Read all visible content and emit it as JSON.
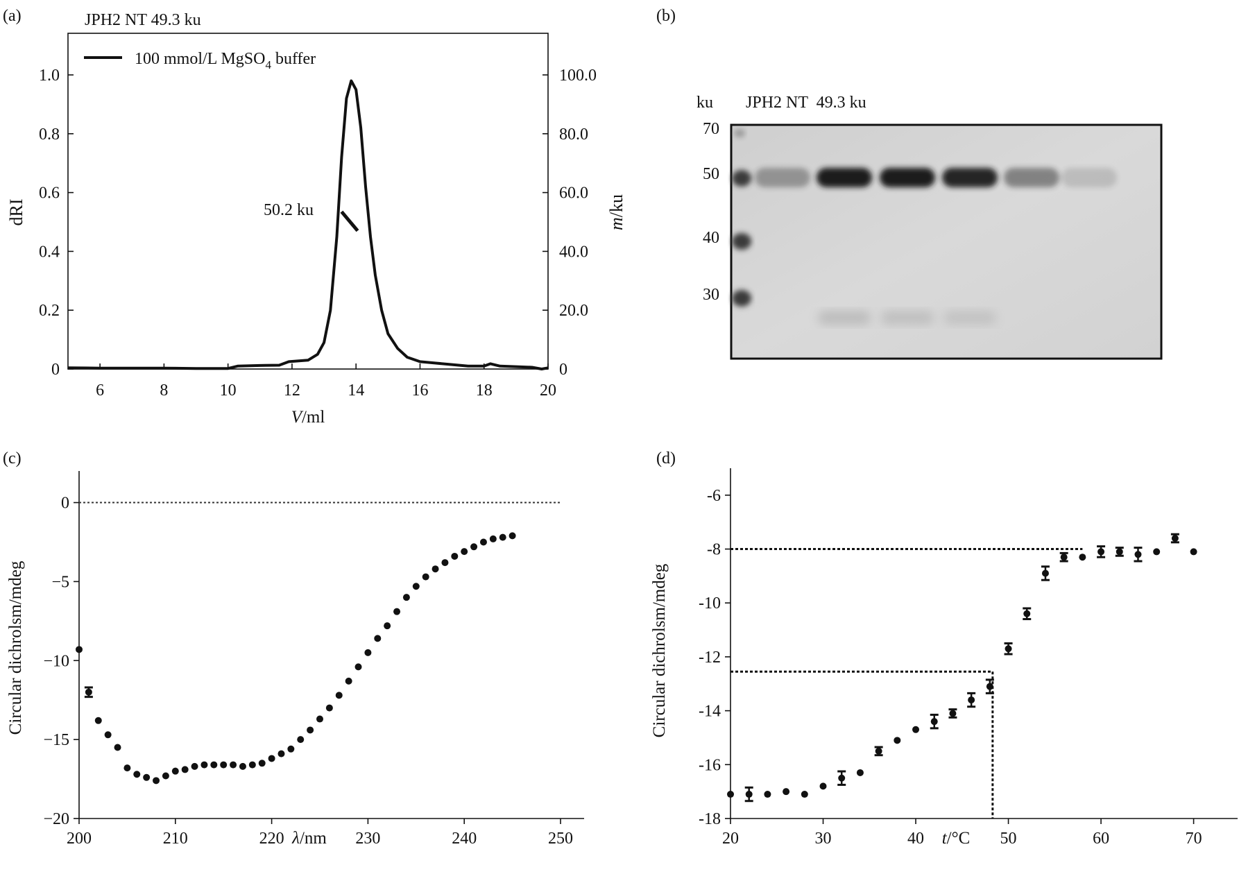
{
  "chart_data": [
    {
      "id": "a",
      "panel_label": "(a)",
      "type": "line",
      "title": "JPH2 NT 49.3 ku",
      "legend": {
        "label": "100 mmol/L MgSO",
        "sub": "4",
        "label_after": " buffer"
      },
      "annotation": "50.2 ku",
      "xlabel": "V/ml",
      "ylabel_left": "dRI",
      "ylabel_right": "m/ku",
      "xlim": [
        5,
        20
      ],
      "ylim_left": [
        0,
        1.1
      ],
      "ylim_right": [
        0,
        110
      ],
      "xticks": [
        "6",
        "8",
        "10",
        "12",
        "14",
        "16",
        "18",
        "20"
      ],
      "yticks_left": [
        "0",
        "0.2",
        "0.4",
        "0.6",
        "0.8",
        "1.0"
      ],
      "yticks_right": [
        "0",
        "20.0",
        "40.0",
        "60.0",
        "80.0",
        "100.0"
      ],
      "series": [
        {
          "axis": "left",
          "x": [
            5,
            6,
            7,
            8,
            9,
            10,
            10.3,
            11,
            11.6,
            11.9,
            12.5,
            12.8,
            13,
            13.2,
            13.4,
            13.55,
            13.7,
            13.85,
            14,
            14.15,
            14.3,
            14.45,
            14.6,
            14.8,
            15,
            15.3,
            15.6,
            16,
            16.5,
            17,
            17.5,
            18,
            18.2,
            18.5,
            19,
            19.5,
            19.8,
            20
          ],
          "y": [
            0.004,
            0.003,
            0.003,
            0.003,
            0.002,
            0.002,
            0.01,
            0.012,
            0.013,
            0.025,
            0.03,
            0.05,
            0.09,
            0.2,
            0.45,
            0.72,
            0.92,
            0.98,
            0.95,
            0.82,
            0.62,
            0.45,
            0.32,
            0.2,
            0.12,
            0.07,
            0.04,
            0.025,
            0.02,
            0.015,
            0.01,
            0.01,
            0.018,
            0.01,
            0.008,
            0.006,
            0.0,
            0.004
          ]
        },
        {
          "axis": "right",
          "x": [
            13.55,
            14.05
          ],
          "y": [
            53.5,
            47.0
          ]
        }
      ]
    },
    {
      "id": "b",
      "panel_label": "(b)",
      "type": "gel",
      "unit_label": "ku",
      "sample_label": "JPH2 NT  49.3 ku",
      "marker_labels": [
        "70",
        "50",
        "40",
        "30"
      ],
      "lanes": [
        {
          "band_50": 0.35,
          "faint_low": 0.0
        },
        {
          "band_50": 1.0,
          "faint_low": 0.35
        },
        {
          "band_50": 1.0,
          "faint_low": 0.3
        },
        {
          "band_50": 0.95,
          "faint_low": 0.25
        },
        {
          "band_50": 0.45,
          "faint_low": 0.0
        },
        {
          "band_50": 0.15,
          "faint_low": 0.0
        }
      ]
    },
    {
      "id": "c",
      "panel_label": "(c)",
      "type": "scatter",
      "xlabel": "λ/nm",
      "ylabel": "Circular dichrolsm/mdeg",
      "xlim": [
        200,
        250
      ],
      "ylim": [
        -20,
        2
      ],
      "xticks": [
        "200",
        "210",
        "220",
        "230",
        "240",
        "250"
      ],
      "yticks": [
        "0",
        "−5",
        "−10",
        "−15",
        "−20"
      ],
      "reference_line_y": 0,
      "points": {
        "x": [
          200,
          201,
          202,
          203,
          204,
          205,
          206,
          207,
          208,
          209,
          210,
          211,
          212,
          213,
          214,
          215,
          216,
          217,
          218,
          219,
          220,
          221,
          222,
          223,
          224,
          225,
          226,
          227,
          228,
          229,
          230,
          231,
          232,
          233,
          234,
          235,
          236,
          237,
          238,
          239,
          240,
          241,
          242,
          243,
          244,
          245
        ],
        "y": [
          -9.3,
          -12.0,
          -13.8,
          -14.7,
          -15.5,
          -16.8,
          -17.2,
          -17.4,
          -17.6,
          -17.3,
          -17.0,
          -16.9,
          -16.7,
          -16.6,
          -16.6,
          -16.6,
          -16.6,
          -16.7,
          -16.6,
          -16.5,
          -16.2,
          -15.9,
          -15.6,
          -15.0,
          -14.4,
          -13.7,
          -13.0,
          -12.2,
          -11.3,
          -10.4,
          -9.5,
          -8.6,
          -7.8,
          -6.9,
          -6.0,
          -5.3,
          -4.7,
          -4.2,
          -3.8,
          -3.4,
          -3.1,
          -2.8,
          -2.5,
          -2.3,
          -2.2,
          -2.1
        ],
        "err": [
          0,
          0.3,
          0,
          0,
          0,
          0,
          0,
          0,
          0,
          0,
          0,
          0,
          0,
          0,
          0,
          0,
          0,
          0,
          0,
          0,
          0,
          0,
          0,
          0,
          0,
          0,
          0,
          0,
          0,
          0,
          0,
          0,
          0,
          0,
          0,
          0,
          0,
          0,
          0,
          0,
          0,
          0,
          0,
          0,
          0,
          0
        ]
      }
    },
    {
      "id": "d",
      "panel_label": "(d)",
      "type": "scatter",
      "xlabel": "t/°C",
      "ylabel": "Circular dichrolsm/mdeg",
      "xlim": [
        20,
        74
      ],
      "ylim": [
        -18,
        -5
      ],
      "xticks": [
        "20",
        "30",
        "40",
        "50",
        "60",
        "70"
      ],
      "yticks": [
        "-6",
        "-8",
        "-10",
        "-12",
        "-14",
        "-16",
        "-18"
      ],
      "reference_lines": [
        {
          "y": -8.0,
          "x_from": 20,
          "x_to": 58
        },
        {
          "y": -12.55,
          "x_from": 20,
          "x_to": 48.3
        },
        {
          "x": 48.3,
          "y_from": -12.55,
          "y_to": -18
        }
      ],
      "points": {
        "x": [
          20,
          22,
          24,
          26,
          28,
          30,
          32,
          34,
          36,
          38,
          40,
          42,
          44,
          46,
          48,
          50,
          52,
          54,
          56,
          58,
          60,
          62,
          64,
          66,
          68,
          70
        ],
        "y": [
          -17.1,
          -17.1,
          -17.1,
          -17.0,
          -17.1,
          -16.8,
          -16.5,
          -16.3,
          -15.5,
          -15.1,
          -14.7,
          -14.4,
          -14.1,
          -13.6,
          -13.1,
          -11.7,
          -10.4,
          -8.9,
          -8.3,
          -8.3,
          -8.1,
          -8.1,
          -8.2,
          -8.1,
          -7.6,
          -8.1
        ],
        "err": [
          0,
          0.25,
          0,
          0,
          0,
          0,
          0.25,
          0,
          0.15,
          0,
          0,
          0.25,
          0.15,
          0.25,
          0.25,
          0.2,
          0.2,
          0.25,
          0.15,
          0,
          0.2,
          0.15,
          0.25,
          0,
          0.15,
          0
        ]
      }
    }
  ]
}
